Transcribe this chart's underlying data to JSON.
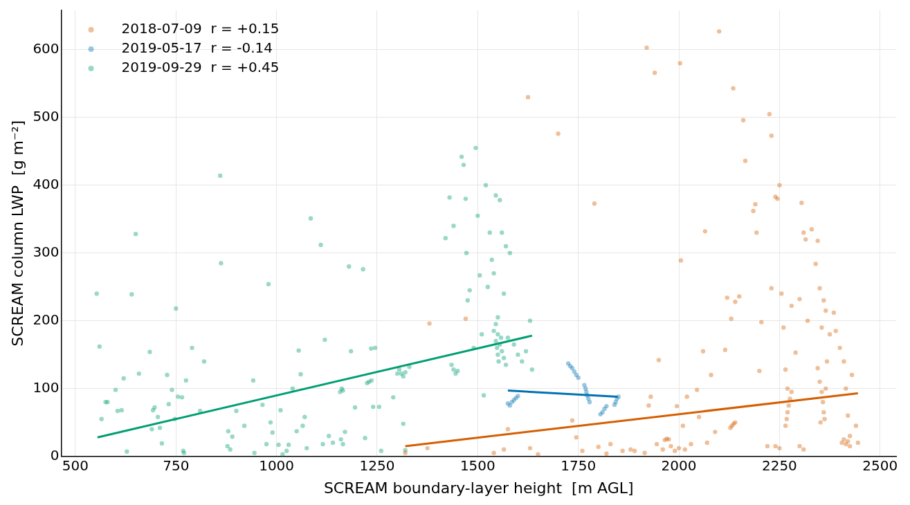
{
  "chart_data": {
    "type": "scatter",
    "xlabel": "SCREAM boundary-layer height  [m AGL]",
    "ylabel": "SCREAM column LWP  [g m⁻²]",
    "xlim": [
      465,
      2540
    ],
    "ylim": [
      0,
      658
    ],
    "xticks": [
      500,
      750,
      1000,
      1250,
      1500,
      1750,
      2000,
      2250,
      2500
    ],
    "yticks": [
      0,
      100,
      200,
      300,
      400,
      500,
      600
    ],
    "grid": true,
    "legend": "top left",
    "marker": "circle",
    "series": [
      {
        "name": "2018-07-09  r = +0.15",
        "color": "#d55e00",
        "x": [
          1320,
          1375,
          1380,
          1470,
          1540,
          1565,
          1575,
          1625,
          1630,
          1650,
          1700,
          1735,
          1745,
          1760,
          1790,
          1800,
          1820,
          1830,
          1860,
          1880,
          1890,
          1915,
          1920,
          1925,
          1930,
          1940,
          1945,
          1950,
          1960,
          1980,
          1995,
          2003,
          2005,
          2010,
          2020,
          2030,
          2045,
          2050,
          2060,
          2065,
          2070,
          2080,
          2090,
          2100,
          2115,
          2120,
          2130,
          2135,
          2140,
          2150,
          2160,
          2165,
          2185,
          2190,
          2193,
          2200,
          2205,
          2220,
          2225,
          2230,
          2230,
          2240,
          2245,
          2250,
          2255,
          2260,
          2265,
          2270,
          2280,
          2290,
          2300,
          2305,
          2310,
          2315,
          2320,
          2330,
          2340,
          2345,
          2350,
          2355,
          2360,
          2365,
          2375,
          2385,
          2390,
          2400,
          2410,
          2415,
          2420,
          2425,
          2430,
          2440,
          2445,
          1965,
          1970,
          1975,
          2128,
          2132,
          2136,
          2140,
          2265,
          2268,
          2270,
          2273,
          2276,
          2280,
          2345,
          2350,
          2355,
          2358,
          2360,
          2362,
          2365,
          2368,
          2352,
          2405,
          2410,
          2415,
          2420,
          2425,
          1990,
          2000,
          2015,
          2240,
          2250,
          2300,
          2310
        ],
        "values": [
          5,
          12,
          196,
          203,
          5,
          10,
          40,
          530,
          12,
          3,
          476,
          53,
          28,
          8,
          373,
          14,
          4,
          18,
          8,
          10,
          8,
          5,
          603,
          75,
          88,
          566,
          18,
          142,
          10,
          15,
          74,
          580,
          289,
          45,
          88,
          18,
          98,
          58,
          155,
          332,
          20,
          120,
          36,
          627,
          157,
          234,
          203,
          543,
          228,
          236,
          496,
          436,
          362,
          372,
          330,
          126,
          198,
          15,
          505,
          473,
          248,
          383,
          380,
          400,
          240,
          190,
          128,
          100,
          222,
          153,
          232,
          374,
          330,
          320,
          200,
          335,
          284,
          318,
          248,
          190,
          230,
          215,
          180,
          212,
          185,
          160,
          140,
          100,
          60,
          30,
          120,
          45,
          20,
          24,
          26,
          25,
          42,
          45,
          48,
          50,
          45,
          55,
          65,
          75,
          85,
          95,
          130,
          110,
          95,
          80,
          65,
          55,
          100,
          140,
          50,
          20,
          25,
          18,
          22,
          15,
          8,
          12,
          10,
          15,
          12,
          15,
          10
        ]
      },
      {
        "name": "2019-05-17  r = -0.14",
        "color": "#0072b2",
        "x": [
          1575,
          1580,
          1585,
          1590,
          1595,
          1600,
          1725,
          1730,
          1735,
          1740,
          1745,
          1750,
          1765,
          1768,
          1770,
          1772,
          1775,
          1778,
          1805,
          1810,
          1815,
          1820,
          1840,
          1843,
          1846,
          1850
        ],
        "values": [
          78,
          75,
          80,
          83,
          86,
          89,
          137,
          133,
          130,
          125,
          120,
          116,
          105,
          100,
          95,
          90,
          85,
          80,
          62,
          65,
          70,
          74,
          76,
          80,
          85,
          88
        ]
      },
      {
        "name": "2019-09-29  r = +0.45",
        "color": "#009e73",
        "x": [
          553,
          560,
          565,
          575,
          580,
          600,
          605,
          615,
          620,
          628,
          640,
          650,
          658,
          685,
          690,
          693,
          697,
          705,
          710,
          715,
          728,
          732,
          740,
          747,
          750,
          755,
          765,
          768,
          770,
          775,
          790,
          810,
          820,
          860,
          862,
          878,
          880,
          885,
          890,
          900,
          920,
          942,
          945,
          965,
          975,
          980,
          985,
          990,
          1005,
          1010,
          1015,
          1025,
          1030,
          1040,
          1050,
          1055,
          1060,
          1065,
          1070,
          1075,
          1085,
          1110,
          1115,
          1120,
          1130,
          1140,
          1160,
          1165,
          1170,
          1180,
          1185,
          1195,
          1215,
          1220,
          1235,
          1240,
          1245,
          1255,
          1260,
          1290,
          1300,
          1315,
          1320,
          1330,
          1420,
          1430,
          1440,
          1460,
          1465,
          1470,
          1472,
          1475,
          1480,
          1490,
          1495,
          1500,
          1505,
          1510,
          1515,
          1520,
          1525,
          1530,
          1535,
          1540,
          1545,
          1550,
          1555,
          1560,
          1565,
          1570,
          1575,
          1580,
          1590,
          1600,
          1610,
          1620,
          1630,
          1635,
          1158,
          1162,
          1165,
          1225,
          1230,
          1236,
          1305,
          1310,
          1315,
          1320,
          1435,
          1440,
          1445,
          1450,
          1540,
          1545,
          1548,
          1550,
          1552,
          1555,
          1558,
          1560,
          1565,
          1570,
          1545,
          1550
        ],
        "values": [
          240,
          162,
          55,
          80,
          80,
          98,
          67,
          68,
          115,
          7,
          239,
          328,
          122,
          154,
          40,
          68,
          72,
          58,
          42,
          19,
          120,
          77,
          98,
          55,
          218,
          88,
          87,
          8,
          5,
          112,
          160,
          67,
          140,
          414,
          285,
          15,
          37,
          10,
          29,
          67,
          45,
          112,
          5,
          76,
          18,
          254,
          50,
          35,
          17,
          68,
          3,
          8,
          17,
          100,
          37,
          156,
          121,
          45,
          58,
          12,
          351,
          312,
          18,
          172,
          30,
          20,
          25,
          18,
          36,
          280,
          155,
          72,
          276,
          27,
          159,
          73,
          160,
          73,
          8,
          87,
          122,
          48,
          9,
          132,
          322,
          382,
          340,
          442,
          430,
          380,
          300,
          230,
          245,
          160,
          455,
          355,
          267,
          180,
          90,
          400,
          250,
          330,
          290,
          270,
          385,
          180,
          378,
          330,
          240,
          310,
          175,
          300,
          165,
          150,
          140,
          155,
          200,
          128,
          95,
          100,
          97,
          108,
          110,
          112,
          128,
          122,
          118,
          124,
          135,
          128,
          122,
          126,
          185,
          170,
          160,
          150,
          140,
          165,
          175,
          155,
          145,
          135,
          195,
          205
        ]
      },
      {
        "type": "line",
        "marker": "none",
        "color": "#009e73",
        "x": [
          555,
          1635
        ],
        "values": [
          28,
          178
        ]
      },
      {
        "type": "line",
        "marker": "none",
        "color": "#0072b2",
        "x": [
          1575,
          1848
        ],
        "values": [
          97,
          88
        ]
      },
      {
        "type": "line",
        "marker": "none",
        "color": "#d55e00",
        "x": [
          1320,
          2445
        ],
        "values": [
          15,
          93
        ]
      }
    ]
  }
}
